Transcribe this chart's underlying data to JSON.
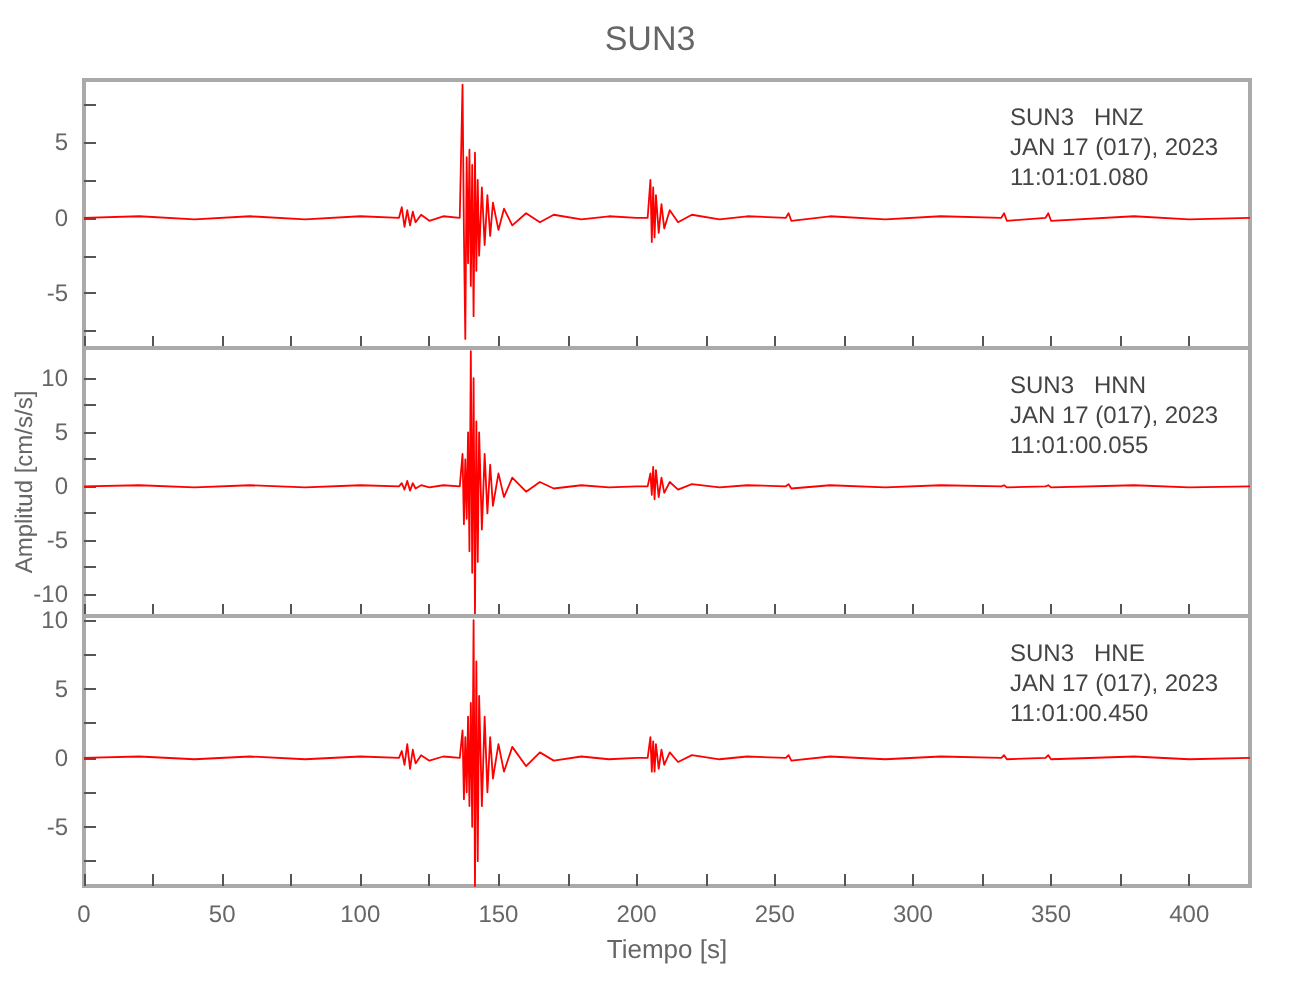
{
  "chart_data": [
    {
      "type": "line",
      "title": "SUN3",
      "annotations": [
        "SUN3   HNZ",
        "JAN 17 (017), 2023",
        "11:01:01.080"
      ],
      "tick_labels": "y",
      "marker": "none",
      "grid": false,
      "xlim": [
        0,
        422
      ],
      "xticks": [
        0,
        {
          "value": 25,
          "label": null
        },
        50,
        {
          "value": 75,
          "label": null
        },
        100,
        {
          "value": 125,
          "label": null
        },
        150,
        {
          "value": 175,
          "label": null
        },
        200,
        {
          "value": 225,
          "label": null
        },
        250,
        {
          "value": 275,
          "label": null
        },
        300,
        {
          "value": 325,
          "label": null
        },
        350,
        {
          "value": 375,
          "label": null
        },
        400
      ],
      "ylim": [
        -8.6,
        9.1
      ],
      "yticks": [
        {
          "value": -7.5,
          "label": null
        },
        -5,
        {
          "value": -2.5,
          "label": null
        },
        0,
        {
          "value": 2.5,
          "label": null
        },
        5,
        {
          "value": 7.5,
          "label": null
        }
      ],
      "x": [
        0,
        20,
        40,
        60,
        80,
        100,
        114,
        115,
        116,
        117,
        118,
        119,
        120,
        122,
        125,
        130,
        136,
        137,
        137.5,
        138,
        138.5,
        139,
        139.5,
        140,
        140.5,
        141,
        141.5,
        142,
        142.5,
        143,
        144,
        145,
        146,
        147,
        148,
        150,
        152,
        155,
        160,
        165,
        170,
        180,
        190,
        200,
        204,
        205,
        205.5,
        206,
        206.5,
        207,
        208,
        209,
        210,
        212,
        215,
        220,
        230,
        240,
        254,
        255,
        256,
        270,
        290,
        310,
        332,
        333,
        334,
        348,
        349,
        350,
        380,
        400,
        422
      ],
      "series": [
        {
          "color": "#ff0000",
          "values": [
            0,
            0.1,
            -0.1,
            0.1,
            -0.1,
            0.1,
            0,
            0.7,
            -0.6,
            0.5,
            -0.5,
            0.4,
            -0.3,
            0.2,
            -0.2,
            0.1,
            0,
            8.8,
            -1,
            -8,
            4,
            -3,
            4.5,
            -4.5,
            3.5,
            -6.5,
            4.3,
            -3.5,
            2.5,
            -2.5,
            2,
            -1.8,
            1.5,
            -1.2,
            1,
            -0.8,
            0.6,
            -0.5,
            0.3,
            -0.3,
            0.2,
            -0.1,
            0.1,
            0,
            0,
            2.5,
            -1.6,
            2,
            -1.3,
            1.5,
            -1,
            0.9,
            -0.7,
            0.5,
            -0.3,
            0.2,
            -0.1,
            0.1,
            0,
            0.3,
            -0.2,
            0.1,
            -0.1,
            0.1,
            0,
            0.3,
            -0.2,
            0,
            0.3,
            -0.2,
            0.1,
            -0.1,
            0
          ]
        }
      ]
    },
    {
      "type": "line",
      "ylabel": "Amplitud [cm/s/s]",
      "annotations": [
        "SUN3   HNN",
        "JAN 17 (017), 2023",
        "11:01:00.055"
      ],
      "tick_labels": "y",
      "marker": "none",
      "grid": false,
      "xlim": [
        0,
        422
      ],
      "xticks": [
        0,
        {
          "value": 25,
          "label": null
        },
        50,
        {
          "value": 75,
          "label": null
        },
        100,
        {
          "value": 125,
          "label": null
        },
        150,
        {
          "value": 175,
          "label": null
        },
        200,
        {
          "value": 225,
          "label": null
        },
        250,
        {
          "value": 275,
          "label": null
        },
        300,
        {
          "value": 325,
          "label": null
        },
        350,
        {
          "value": 375,
          "label": null
        },
        400
      ],
      "ylim": [
        -12,
        12.8
      ],
      "yticks": [
        -10,
        {
          "value": -7.5,
          "label": null
        },
        -5,
        {
          "value": -2.5,
          "label": null
        },
        0,
        {
          "value": 2.5,
          "label": null
        },
        5,
        {
          "value": 7.5,
          "label": null
        },
        10
      ],
      "x": [
        0,
        20,
        40,
        60,
        80,
        100,
        114,
        115,
        116,
        117,
        118,
        119,
        120,
        122,
        125,
        130,
        136,
        137,
        137.5,
        138,
        138.5,
        139,
        139.5,
        140,
        140.5,
        141,
        141.5,
        142,
        142.5,
        143,
        144,
        145,
        146,
        147,
        148,
        150,
        152,
        155,
        160,
        165,
        170,
        180,
        190,
        200,
        204,
        205,
        205.5,
        206,
        206.5,
        207,
        208,
        209,
        210,
        212,
        215,
        220,
        230,
        240,
        254,
        255,
        256,
        270,
        290,
        310,
        332,
        333,
        334,
        348,
        349,
        350,
        380,
        400,
        422
      ],
      "series": [
        {
          "color": "#ff0000",
          "values": [
            0,
            0.1,
            -0.1,
            0.1,
            -0.1,
            0.1,
            0,
            0.3,
            -0.3,
            0.5,
            -0.4,
            0.3,
            -0.2,
            0.1,
            -0.1,
            0.1,
            0,
            3,
            -3.5,
            2.5,
            -3,
            5,
            -6,
            12.5,
            -8,
            10,
            -11.8,
            6,
            -7,
            5,
            -4,
            3,
            -2.5,
            2,
            -1.8,
            1.2,
            -1,
            0.8,
            -0.5,
            0.4,
            -0.2,
            0.1,
            -0.1,
            0,
            0,
            1.2,
            -0.8,
            1.8,
            -1.2,
            1.5,
            -1,
            0.8,
            -0.6,
            0.4,
            -0.3,
            0.2,
            -0.1,
            0.1,
            0,
            0.2,
            -0.2,
            0.1,
            -0.1,
            0.1,
            0,
            0.1,
            -0.1,
            0,
            0.1,
            -0.1,
            0.1,
            -0.1,
            0
          ]
        }
      ]
    },
    {
      "type": "line",
      "xlabel": "Tiempo [s]",
      "annotations": [
        "SUN3   HNE",
        "JAN 17 (017), 2023",
        "11:01:00.450"
      ],
      "marker": "none",
      "grid": false,
      "xlim": [
        0,
        422
      ],
      "xticks": [
        0,
        {
          "value": 25,
          "label": null
        },
        50,
        {
          "value": 75,
          "label": null
        },
        100,
        {
          "value": 125,
          "label": null
        },
        150,
        {
          "value": 175,
          "label": null
        },
        200,
        {
          "value": 225,
          "label": null
        },
        250,
        {
          "value": 275,
          "label": null
        },
        300,
        {
          "value": 325,
          "label": null
        },
        350,
        {
          "value": 375,
          "label": null
        },
        400
      ],
      "ylim": [
        -9.3,
        10.3
      ],
      "yticks": [
        {
          "value": -7.5,
          "label": null
        },
        -5,
        {
          "value": -2.5,
          "label": null
        },
        0,
        {
          "value": 2.5,
          "label": null
        },
        5,
        {
          "value": 7.5,
          "label": null
        },
        10
      ],
      "x": [
        0,
        20,
        40,
        60,
        80,
        100,
        114,
        115,
        116,
        117,
        118,
        119,
        120,
        122,
        125,
        130,
        136,
        137,
        137.5,
        138,
        138.5,
        139,
        139.5,
        140,
        140.5,
        141,
        141.5,
        142,
        142.5,
        143,
        144,
        145,
        146,
        147,
        148,
        150,
        152,
        155,
        160,
        165,
        170,
        180,
        190,
        200,
        204,
        205,
        205.5,
        206,
        206.5,
        207,
        208,
        209,
        210,
        212,
        215,
        220,
        230,
        240,
        254,
        255,
        256,
        270,
        290,
        310,
        332,
        333,
        334,
        348,
        349,
        350,
        380,
        400,
        422
      ],
      "series": [
        {
          "color": "#ff0000",
          "values": [
            0,
            0.1,
            -0.1,
            0.1,
            -0.1,
            0.1,
            0,
            0.5,
            -0.5,
            1,
            -0.8,
            0.6,
            -0.4,
            0.2,
            -0.2,
            0.1,
            0,
            2,
            -3,
            1.5,
            -2.5,
            3,
            -3.5,
            4,
            -5,
            10,
            -9.3,
            7,
            -7.5,
            4.5,
            -3.5,
            3,
            -2.5,
            1.5,
            -1.5,
            1,
            -1,
            0.8,
            -0.6,
            0.4,
            -0.2,
            0.1,
            -0.1,
            0,
            0,
            1.5,
            -1,
            1.2,
            -1,
            1,
            -0.8,
            0.6,
            -0.5,
            0.4,
            -0.3,
            0.2,
            -0.1,
            0.1,
            0,
            0.2,
            -0.2,
            0.1,
            -0.1,
            0.1,
            0,
            0.2,
            -0.1,
            0,
            0.2,
            -0.1,
            0.1,
            -0.1,
            0
          ]
        }
      ]
    }
  ]
}
